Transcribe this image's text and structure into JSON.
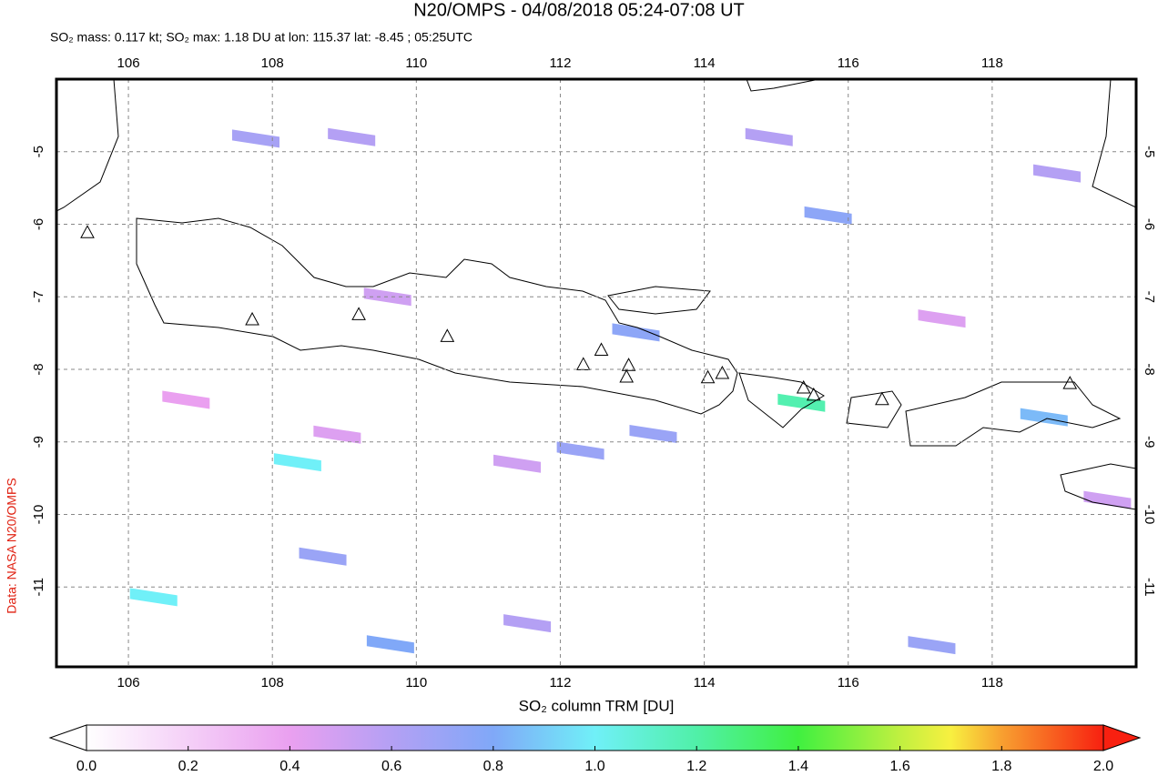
{
  "title": "N20/OMPS - 04/08/2018 05:24-07:08 UT",
  "subtitle": "SO₂ mass: 0.117 kt; SO₂ max: 1.18 DU at lon: 115.37 lat: -8.45 ; 05:25UTC",
  "side_label": "Data: NASA N20/OMPS",
  "map": {
    "lon_range": [
      105,
      120
    ],
    "lat_range": [
      -12.1,
      -4
    ],
    "lon_ticks": [
      106,
      108,
      110,
      112,
      114,
      116,
      118
    ],
    "lat_ticks": [
      -5,
      -6,
      -7,
      -8,
      -9,
      -10,
      -11
    ],
    "volcanoes": [
      {
        "lon": 105.43,
        "lat": -6.11
      },
      {
        "lon": 107.72,
        "lat": -7.31
      },
      {
        "lon": 109.2,
        "lat": -7.24
      },
      {
        "lon": 110.43,
        "lat": -7.54
      },
      {
        "lon": 112.32,
        "lat": -7.93
      },
      {
        "lon": 112.57,
        "lat": -7.73
      },
      {
        "lon": 112.95,
        "lat": -7.94
      },
      {
        "lon": 112.92,
        "lat": -8.1
      },
      {
        "lon": 114.05,
        "lat": -8.11
      },
      {
        "lon": 114.25,
        "lat": -8.05
      },
      {
        "lon": 115.38,
        "lat": -8.25
      },
      {
        "lon": 115.52,
        "lat": -8.35
      },
      {
        "lon": 116.47,
        "lat": -8.41
      },
      {
        "lon": 119.08,
        "lat": -8.19
      }
    ],
    "pixels": [
      {
        "lon": 115.35,
        "lat": -8.46,
        "value": 1.18
      },
      {
        "lon": 108.35,
        "lat": -9.28,
        "value": 1.0
      },
      {
        "lon": 106.35,
        "lat": -11.14,
        "value": 1.0
      },
      {
        "lon": 109.64,
        "lat": -11.79,
        "value": 0.8
      },
      {
        "lon": 108.7,
        "lat": -10.58,
        "value": 0.7
      },
      {
        "lon": 107.77,
        "lat": -4.82,
        "value": 0.65
      },
      {
        "lon": 113.05,
        "lat": -7.49,
        "value": 0.75
      },
      {
        "lon": 115.72,
        "lat": -5.88,
        "value": 0.75
      },
      {
        "lon": 113.29,
        "lat": -8.89,
        "value": 0.7
      },
      {
        "lon": 111.54,
        "lat": -11.5,
        "value": 0.6
      },
      {
        "lon": 112.28,
        "lat": -9.12,
        "value": 0.7
      },
      {
        "lon": 118.72,
        "lat": -8.66,
        "value": 0.85
      },
      {
        "lon": 117.16,
        "lat": -11.8,
        "value": 0.7
      },
      {
        "lon": 106.8,
        "lat": -8.42,
        "value": 0.4
      },
      {
        "lon": 109.6,
        "lat": -7.0,
        "value": 0.5
      },
      {
        "lon": 118.9,
        "lat": -5.3,
        "value": 0.6
      },
      {
        "lon": 109.1,
        "lat": -4.8,
        "value": 0.6
      },
      {
        "lon": 114.9,
        "lat": -4.8,
        "value": 0.6
      },
      {
        "lon": 108.9,
        "lat": -8.9,
        "value": 0.45
      },
      {
        "lon": 111.4,
        "lat": -9.3,
        "value": 0.5
      },
      {
        "lon": 117.3,
        "lat": -7.3,
        "value": 0.45
      },
      {
        "lon": 119.6,
        "lat": -9.8,
        "value": 0.5
      }
    ]
  },
  "colorbar": {
    "label": "SO₂ column TRM [DU]",
    "range": [
      0,
      2
    ],
    "ticks": [
      {
        "value": 0,
        "label": "0.0"
      },
      {
        "value": 0.2,
        "label": "0.2"
      },
      {
        "value": 0.4,
        "label": "0.4"
      },
      {
        "value": 0.6,
        "label": "0.6"
      },
      {
        "value": 0.8,
        "label": "0.8"
      },
      {
        "value": 1,
        "label": "1.0"
      },
      {
        "value": 1.2,
        "label": "1.2"
      },
      {
        "value": 1.4,
        "label": "1.4"
      },
      {
        "value": 1.6,
        "label": "1.6"
      },
      {
        "value": 1.8,
        "label": "1.8"
      },
      {
        "value": 2,
        "label": "2.0"
      }
    ],
    "stops": [
      {
        "value": 0,
        "color": "#ffffff"
      },
      {
        "value": 0.4,
        "color": "#eaa0f0"
      },
      {
        "value": 0.6,
        "color": "#b4a0f4"
      },
      {
        "value": 0.8,
        "color": "#80a8f8"
      },
      {
        "value": 1,
        "color": "#70f0f8"
      },
      {
        "value": 1.2,
        "color": "#50f0a8"
      },
      {
        "value": 1.4,
        "color": "#40f040"
      },
      {
        "value": 1.6,
        "color": "#c0f040"
      },
      {
        "value": 1.7,
        "color": "#f8f040"
      },
      {
        "value": 1.8,
        "color": "#f8a030"
      },
      {
        "value": 2,
        "color": "#f82010"
      }
    ]
  }
}
